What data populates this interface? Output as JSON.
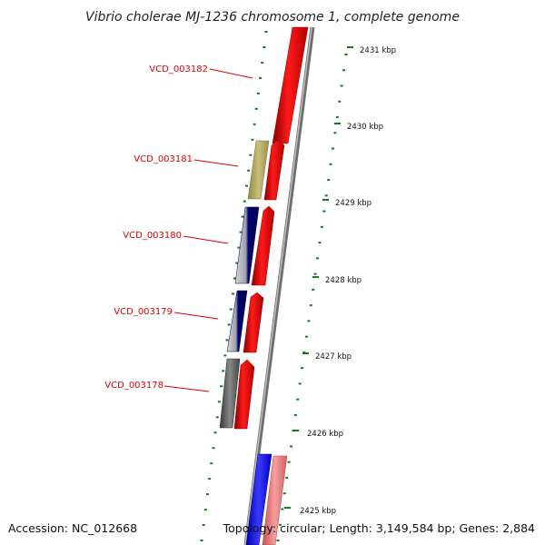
{
  "title": "Vibrio cholerae MJ-1236 chromosome 1, complete genome",
  "accession": "Accession: NC_012668",
  "topology": "Topology: circular; Length: 3,149,584 bp; Genes: 2,884",
  "gene_labels": [
    "VCD_003182",
    "VCD_003181",
    "VCD_003180",
    "VCD_003179",
    "VCD_003178"
  ],
  "scale_labels": [
    "2431 kbp",
    "2430 kbp",
    "2429 kbp",
    "2428 kbp",
    "2427 kbp",
    "2426 kbp",
    "2425 kbp"
  ],
  "colors": {
    "forward_cds": "#ff0000",
    "reverse_yellow": "#b5ad66",
    "reverse_navy": "#000080",
    "reverse_gray": "#555555",
    "blue_feature": "#1a1aff",
    "pink_feature": "#f08080",
    "label_red": "#e00000",
    "tick_green": "#1a7a1a",
    "backbone_gray": "#888888"
  }
}
